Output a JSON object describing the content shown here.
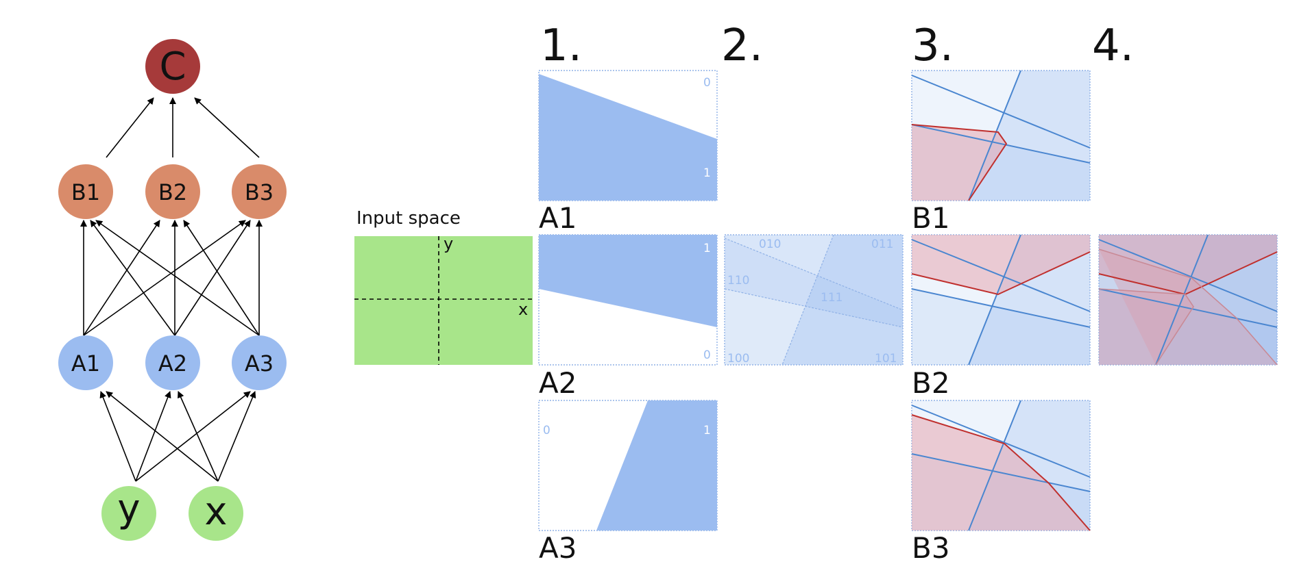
{
  "network": {
    "nodes": {
      "c": "C",
      "b1": "B1",
      "b2": "B2",
      "b3": "B3",
      "a1": "A1",
      "a2": "A2",
      "a3": "A3",
      "y": "y",
      "x": "x"
    }
  },
  "columns": {
    "c1": "1.",
    "c2": "2.",
    "c3": "3.",
    "c4": "4."
  },
  "input_space": {
    "title": "Input space",
    "axis_y": "y",
    "axis_x": "x"
  },
  "panels": {
    "a1": {
      "caption": "A1",
      "label_0": "0",
      "label_1": "1"
    },
    "a2": {
      "caption": "A2",
      "label_0": "0",
      "label_1": "1"
    },
    "a3": {
      "caption": "A3",
      "label_0": "0",
      "label_1": "1"
    },
    "combined": {
      "r010": "010",
      "r011": "011",
      "r110": "110",
      "r111": "111",
      "r100": "100",
      "r101": "101"
    },
    "b1": {
      "caption": "B1"
    },
    "b2": {
      "caption": "B2"
    },
    "b3": {
      "caption": "B3"
    }
  },
  "colors": {
    "c_node": "#a63a3a",
    "b_node": "#d98b6a",
    "a_node": "#9bbcf0",
    "input_node": "#a8e58a",
    "region_fill": "#9bbcf0",
    "line_blue": "#4a86d0",
    "line_red": "#c0302e",
    "input_space_fill": "#a8e58a"
  }
}
